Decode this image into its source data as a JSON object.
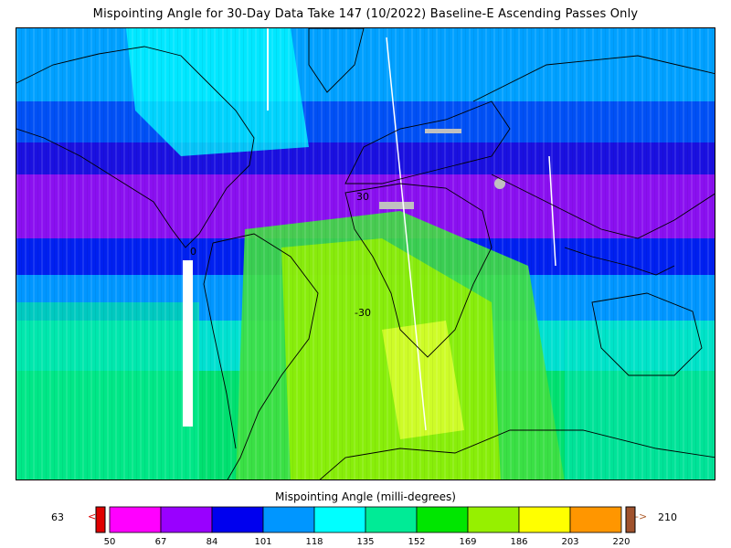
{
  "title": "Mispointing Angle for 30-Day Data Take 147 (10/2022) Baseline-E Ascending Passes Only",
  "map": {
    "lat_labels": [
      "30",
      "0",
      "-30"
    ],
    "land_outline_color": "#000000",
    "no_data_color": "#ffffff",
    "missing_color": "#c0c0c0"
  },
  "colorbar": {
    "title": "Mispointing Angle (milli-degrees)",
    "min_value": "63",
    "max_value": "210",
    "under_arrow": "<",
    "over_arrow": "->",
    "under_color": "#e00000",
    "over_color": "#a0522d",
    "ticks": [
      "50",
      "67",
      "84",
      "101",
      "118",
      "135",
      "152",
      "169",
      "186",
      "203",
      "220"
    ],
    "colors": [
      "#ff00ff",
      "#9900ff",
      "#0000ee",
      "#0096ff",
      "#00ffff",
      "#00eb96",
      "#00e600",
      "#96f000",
      "#ffff00",
      "#ff9600"
    ]
  }
}
